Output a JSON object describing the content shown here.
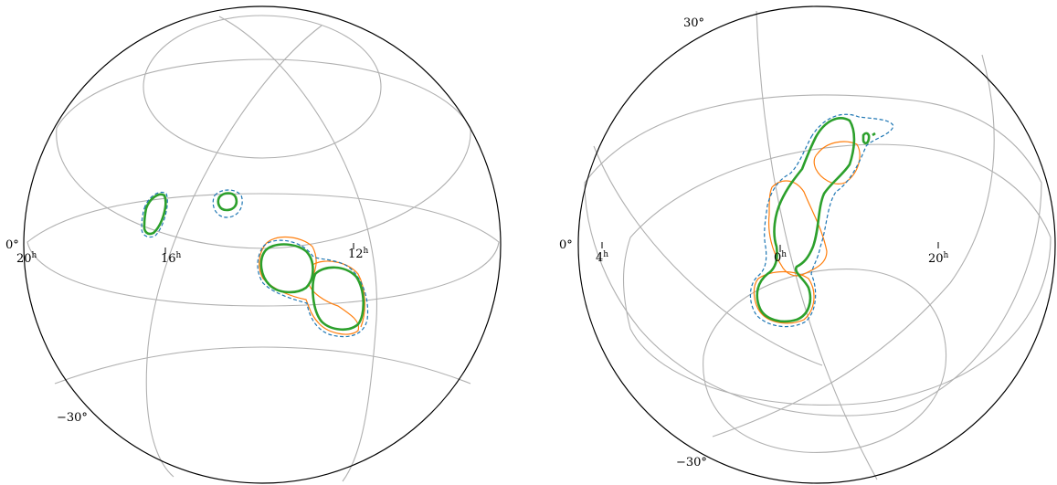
{
  "left_globe": {
    "ra_labels": [
      {
        "hour": "20",
        "unit": "h"
      },
      {
        "hour": "16",
        "unit": "h"
      },
      {
        "hour": "12",
        "unit": "h"
      }
    ],
    "dec_labels": [
      "0°",
      "−30°"
    ]
  },
  "right_globe": {
    "ra_labels": [
      {
        "hour": "4",
        "unit": "h"
      },
      {
        "hour": "0",
        "unit": "h"
      },
      {
        "hour": "20",
        "unit": "h"
      }
    ],
    "dec_labels": [
      "30°",
      "0°",
      "−30°"
    ]
  },
  "colors": {
    "outline": "#000000",
    "graticule": "#b0b0b0",
    "contour_blue_dashed": "#1f77b4",
    "contour_orange": "#ff7f0e",
    "contour_green": "#2ca02c"
  }
}
